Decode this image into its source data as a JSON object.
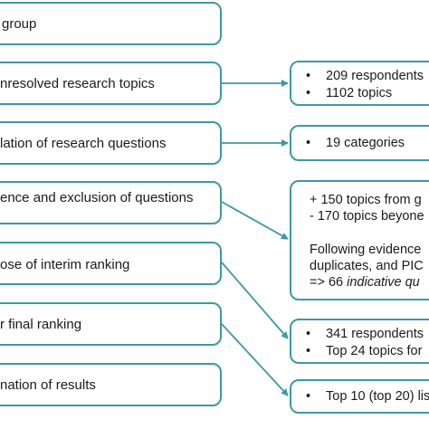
{
  "steps": [
    {
      "label": "group"
    },
    {
      "label": "nresolved research topics"
    },
    {
      "label": "lation of research questions"
    },
    {
      "label": "ence and exclusion of questions"
    },
    {
      "label": "ose of interim ranking"
    },
    {
      "label": "r final ranking"
    },
    {
      "label": "nation of results"
    }
  ],
  "results": {
    "r1": [
      "209 respondents",
      "1102 topics"
    ],
    "r2": [
      "19 categories"
    ],
    "r3": {
      "line1": "+ 150 topics from g",
      "line2": "- 170 topics beyone",
      "line3": "Following evidence",
      "line4": "duplicates, and PIC",
      "line5_prefix": "=> 66 ",
      "line5_italic": "indicative qu"
    },
    "r4": [
      "341 respondents",
      "Top 24 topics for"
    ],
    "r5": [
      "Top 10 (top 20) lis"
    ]
  },
  "bullet_glyph": "•",
  "colors": {
    "border": "#3f98a3",
    "arrow": "#3f98a3"
  }
}
